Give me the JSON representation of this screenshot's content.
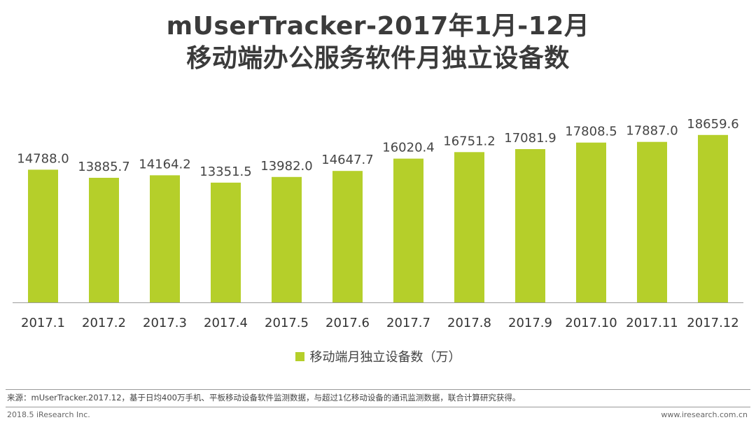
{
  "chart_data": {
    "type": "bar",
    "title_line1": "mUserTracker-2017年1月-12月",
    "title_line2": "移动端办公服务软件月独立设备数",
    "categories": [
      "2017.1",
      "2017.2",
      "2017.3",
      "2017.4",
      "2017.5",
      "2017.6",
      "2017.7",
      "2017.8",
      "2017.9",
      "2017.10",
      "2017.11",
      "2017.12"
    ],
    "values": [
      14788.0,
      13885.7,
      14164.2,
      13351.5,
      13982.0,
      14647.7,
      16020.4,
      16751.2,
      17081.9,
      17808.5,
      17887.0,
      18659.6
    ],
    "value_labels": [
      "14788.0",
      "13885.7",
      "14164.2",
      "13351.5",
      "13982.0",
      "14647.7",
      "16020.4",
      "16751.2",
      "17081.9",
      "17808.5",
      "17887.0",
      "18659.6"
    ],
    "series_name": "移动端月独立设备数（万）",
    "ylim": [
      0,
      22000
    ],
    "xlabel": "",
    "ylabel": "",
    "grid": false,
    "legend_position": "bottom-center",
    "bar_color": "#b5cf2a"
  },
  "footer": {
    "source": "来源：mUserTracker.2017.12，基于日均400万手机、平板移动设备软件监测数据，与超过1亿移动设备的通讯监测数据，联合计算研究获得。",
    "copyright": "2018.5 iResearch Inc.",
    "website": "www.iresearch.com.cn"
  }
}
